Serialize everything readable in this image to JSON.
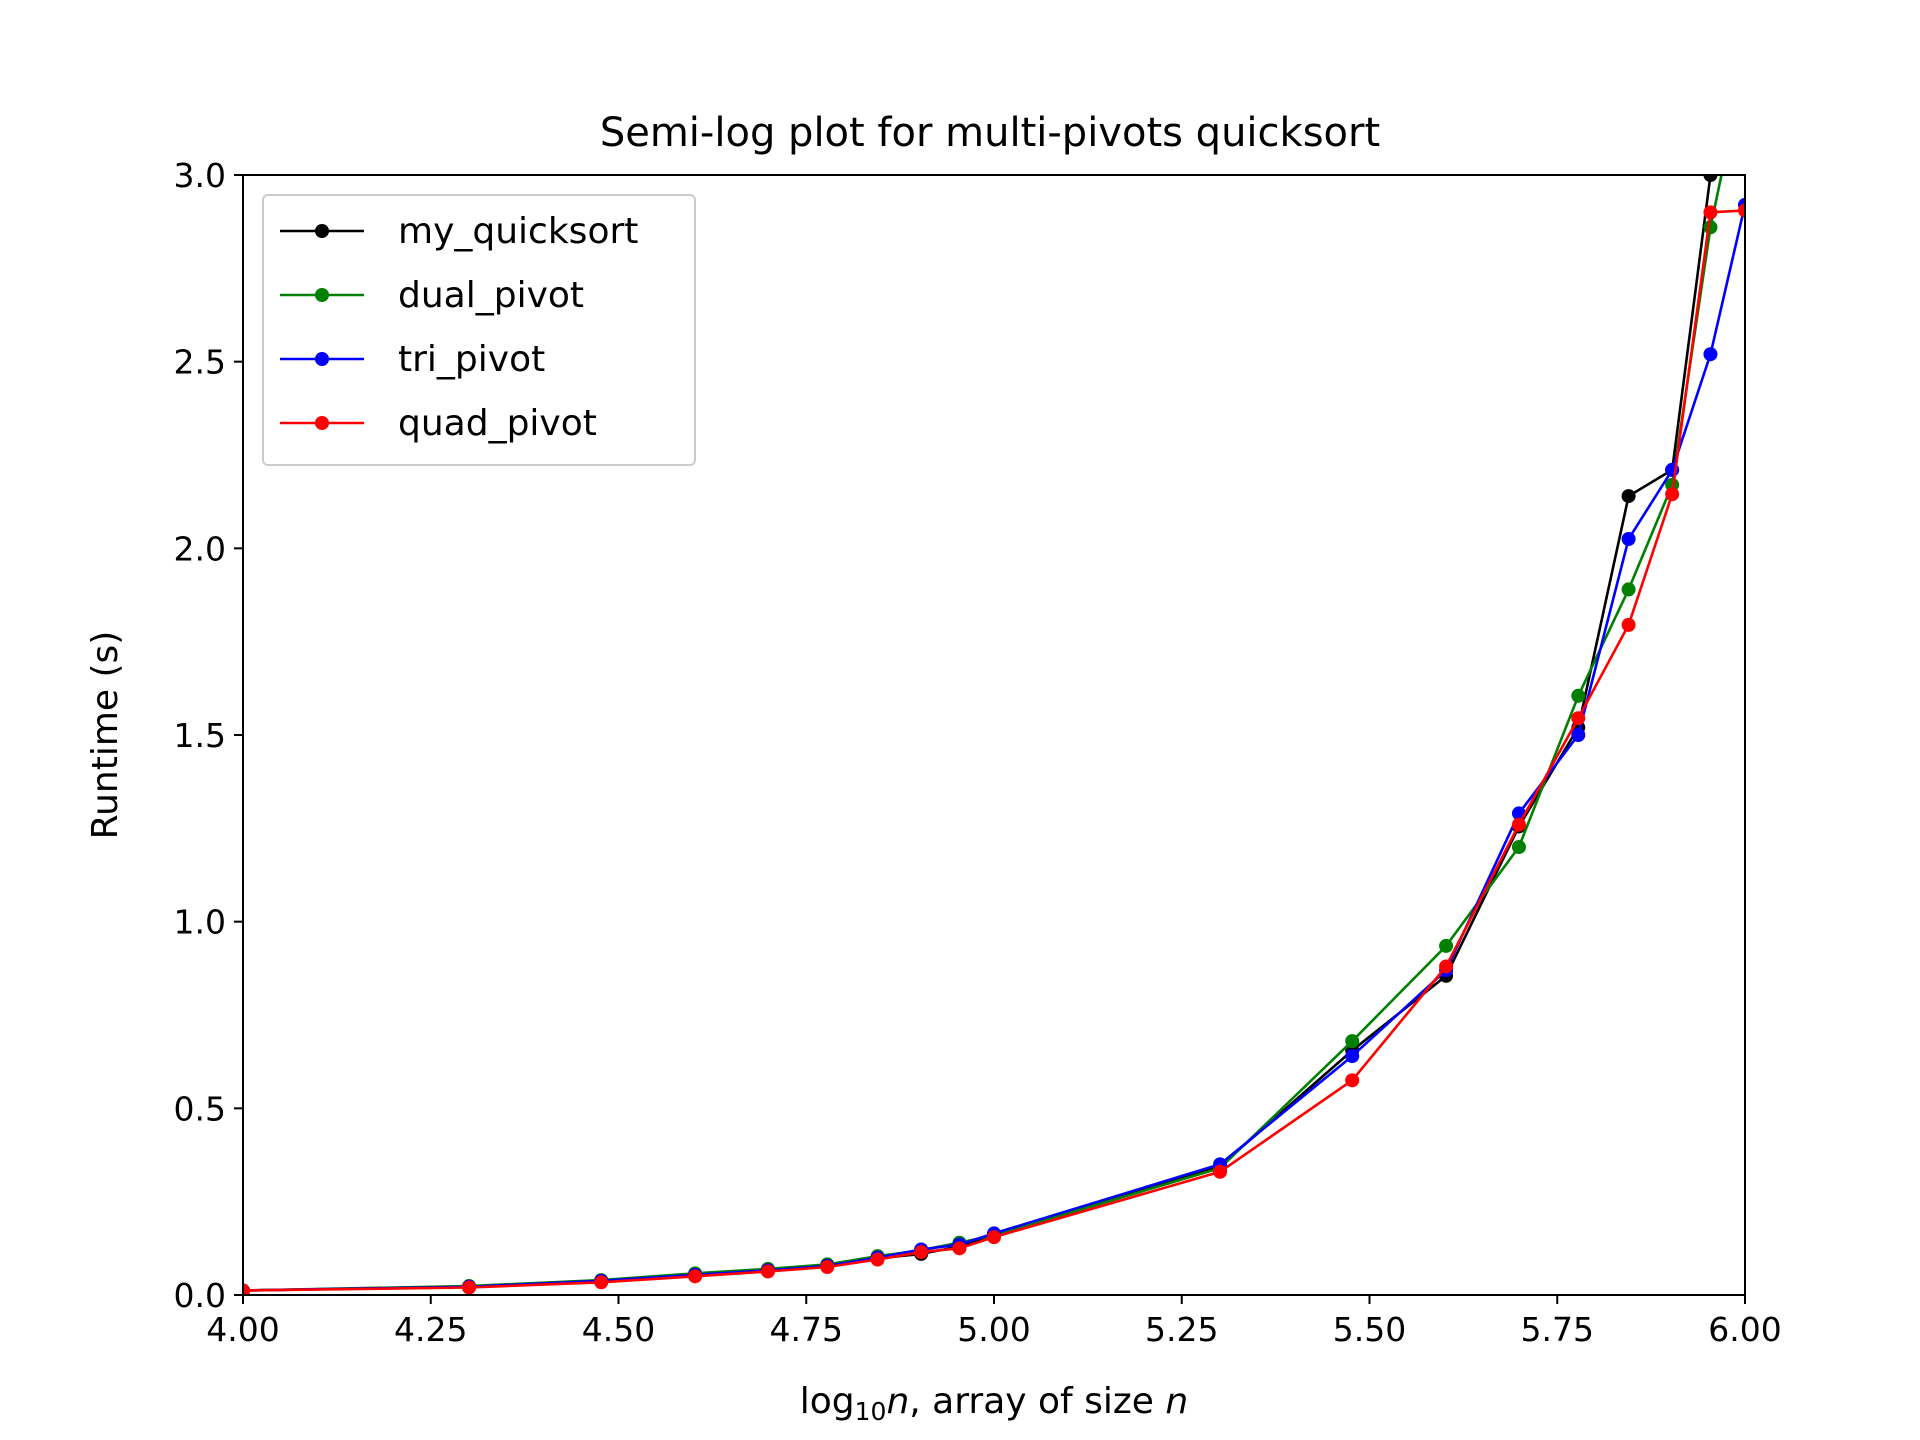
{
  "chart_data": {
    "type": "line",
    "title": "Semi-log plot for multi-pivots quicksort",
    "xlabel": {
      "prefix": "log",
      "sub": "10",
      "var": "n",
      "suffix": ", array of size ",
      "var2": "n"
    },
    "ylabel": "Runtime (s)",
    "xlim": [
      4.0,
      6.0
    ],
    "ylim": [
      0.0,
      3.0
    ],
    "xticks": [
      4.0,
      4.25,
      4.5,
      4.75,
      5.0,
      5.25,
      5.5,
      5.75,
      6.0
    ],
    "xtick_labels": [
      "4.00",
      "4.25",
      "4.50",
      "4.75",
      "5.00",
      "5.25",
      "5.50",
      "5.75",
      "6.00"
    ],
    "yticks": [
      0.0,
      0.5,
      1.0,
      1.5,
      2.0,
      2.5,
      3.0
    ],
    "ytick_labels": [
      "0.0",
      "0.5",
      "1.0",
      "1.5",
      "2.0",
      "2.5",
      "3.0"
    ],
    "grid": false,
    "legend_position": "upper-left",
    "series": [
      {
        "name": "my_quicksort",
        "color": "#000000",
        "x": [
          4.0,
          4.301,
          4.477,
          4.602,
          4.699,
          4.778,
          4.845,
          4.903,
          4.954,
          5.0,
          5.301,
          5.477,
          5.602,
          5.699,
          5.778,
          5.845,
          5.903,
          5.954,
          6.0
        ],
        "y": [
          0.012,
          0.022,
          0.036,
          0.052,
          0.066,
          0.08,
          0.098,
          0.11,
          0.13,
          0.16,
          0.345,
          0.655,
          0.855,
          1.255,
          1.52,
          2.14,
          2.21,
          3.0,
          3.2
        ]
      },
      {
        "name": "dual_pivot",
        "color": "#008000",
        "x": [
          4.0,
          4.301,
          4.477,
          4.602,
          4.699,
          4.778,
          4.845,
          4.903,
          4.954,
          5.0,
          5.301,
          5.477,
          5.602,
          5.699,
          5.778,
          5.845,
          5.903,
          5.954,
          6.0
        ],
        "y": [
          0.012,
          0.024,
          0.04,
          0.058,
          0.07,
          0.082,
          0.104,
          0.12,
          0.14,
          0.16,
          0.34,
          0.68,
          0.935,
          1.2,
          1.605,
          1.89,
          2.17,
          2.86,
          3.3
        ]
      },
      {
        "name": "tri_pivot",
        "color": "#0000ff",
        "x": [
          4.0,
          4.301,
          4.477,
          4.602,
          4.699,
          4.778,
          4.845,
          4.903,
          4.954,
          5.0,
          5.301,
          5.477,
          5.602,
          5.699,
          5.778,
          5.845,
          5.903,
          5.954,
          6.0
        ],
        "y": [
          0.012,
          0.022,
          0.038,
          0.054,
          0.066,
          0.078,
          0.1,
          0.122,
          0.135,
          0.165,
          0.35,
          0.64,
          0.87,
          1.29,
          1.5,
          2.025,
          2.21,
          2.52,
          2.92
        ]
      },
      {
        "name": "quad_pivot",
        "color": "#ff0000",
        "x": [
          4.0,
          4.301,
          4.477,
          4.602,
          4.699,
          4.778,
          4.845,
          4.903,
          4.954,
          5.0,
          5.301,
          5.477,
          5.602,
          5.699,
          5.778,
          5.845,
          5.903,
          5.954,
          6.0
        ],
        "y": [
          0.012,
          0.02,
          0.034,
          0.05,
          0.063,
          0.075,
          0.095,
          0.115,
          0.125,
          0.155,
          0.33,
          0.575,
          0.88,
          1.26,
          1.545,
          1.795,
          2.145,
          2.9,
          2.905
        ]
      }
    ]
  }
}
